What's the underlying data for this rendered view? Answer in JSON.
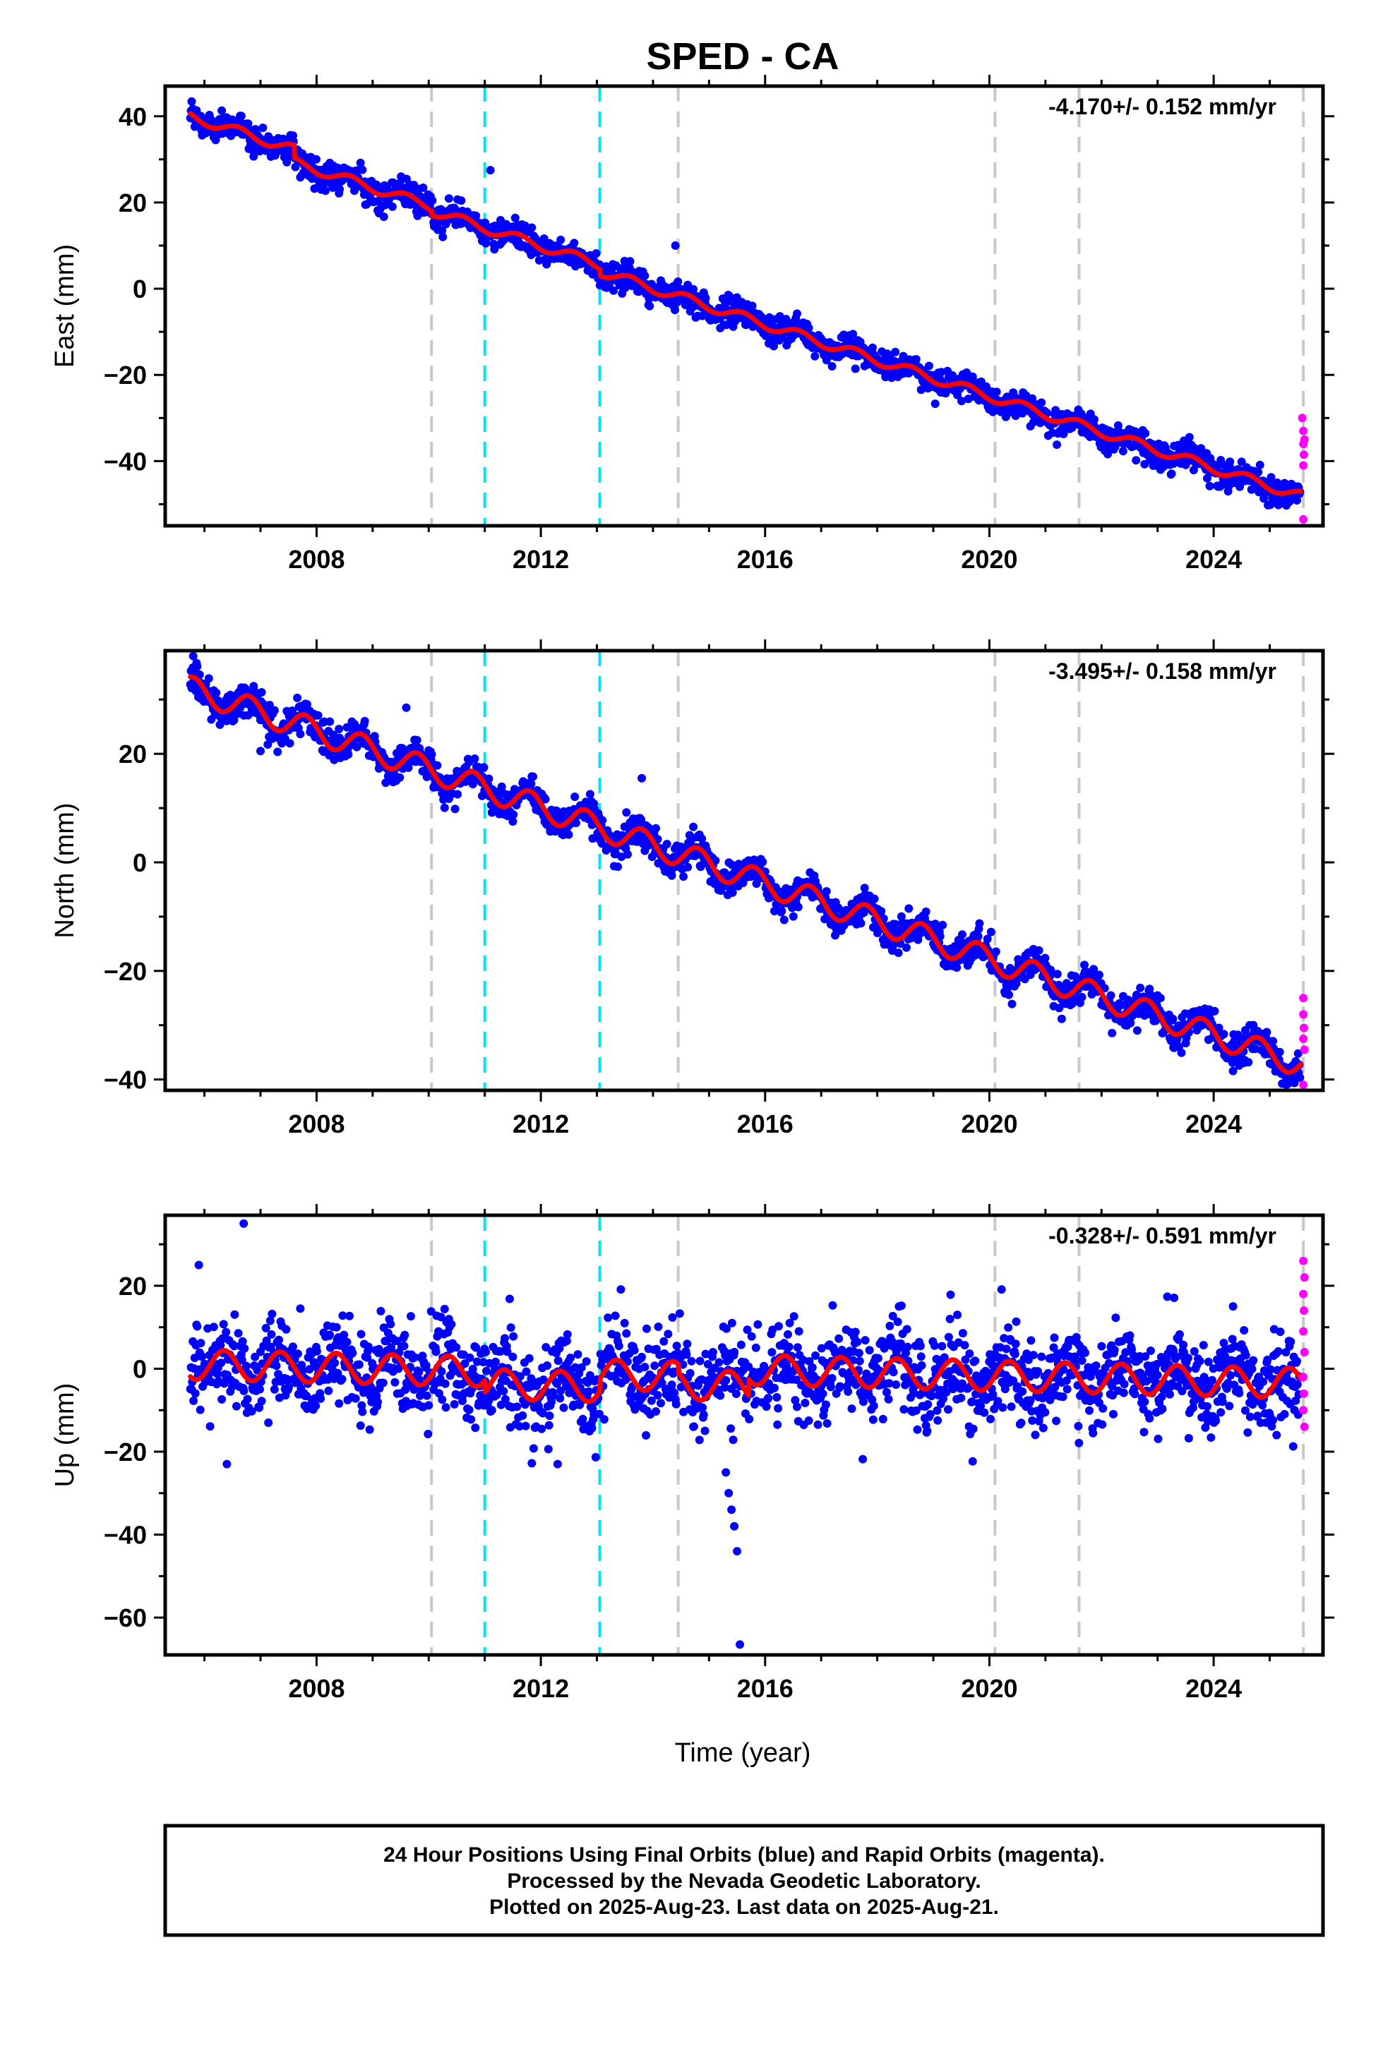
{
  "chart_data": [
    {
      "type": "scatter",
      "panel": "east",
      "title": "SPED - CA",
      "ylabel": "East (mm)",
      "xlabel": "",
      "rate_label": "-4.170+/- 0.152 mm/yr",
      "xlim": [
        2005.3,
        2025.95
      ],
      "ylim": [
        -55,
        47
      ],
      "xticks": [
        2008,
        2012,
        2016,
        2020,
        2024
      ],
      "yticks": [
        -40,
        -20,
        0,
        20,
        40
      ],
      "grid": false,
      "model": {
        "start_year": 2005.75,
        "start_value": 40.0,
        "rate": -4.17,
        "annual_amp": 1.1,
        "annual_phase": 0.35,
        "offsets": [
          {
            "year": 2007.6,
            "value": -3.0
          },
          {
            "year": 2010.05,
            "value": -1.0
          },
          {
            "year": 2013.05,
            "value": -1.5
          }
        ]
      },
      "final_scatter_sd": 1.6,
      "final_outliers": [
        {
          "x": 2006.2,
          "y": 34.5
        },
        {
          "x": 2010.0,
          "y": 18.0
        },
        {
          "x": 2011.1,
          "y": 27.5
        },
        {
          "x": 2014.4,
          "y": 10.0
        }
      ],
      "rapid_points": [
        {
          "x": 2025.58,
          "y": -30.0
        },
        {
          "x": 2025.6,
          "y": -33.0
        },
        {
          "x": 2025.6,
          "y": -36.0
        },
        {
          "x": 2025.61,
          "y": -38.5
        },
        {
          "x": 2025.6,
          "y": -41.0
        },
        {
          "x": 2025.62,
          "y": -35.0
        },
        {
          "x": 2025.6,
          "y": -53.5
        }
      ]
    },
    {
      "type": "scatter",
      "panel": "north",
      "title": "",
      "ylabel": "North (mm)",
      "xlabel": "",
      "rate_label": "-3.495+/- 0.158 mm/yr",
      "xlim": [
        2005.3,
        2025.95
      ],
      "ylim": [
        -42,
        39
      ],
      "xticks": [
        2008,
        2012,
        2016,
        2020,
        2024
      ],
      "yticks": [
        -40,
        -20,
        0,
        20
      ],
      "grid": false,
      "model": {
        "start_year": 2005.75,
        "start_value": 32.0,
        "rate": -3.495,
        "annual_amp": 2.3,
        "annual_phase": 0.55,
        "offsets": []
      },
      "final_scatter_sd": 1.5,
      "final_outliers": [
        {
          "x": 2005.8,
          "y": 38.0
        },
        {
          "x": 2007.0,
          "y": 20.5
        },
        {
          "x": 2009.6,
          "y": 28.5
        },
        {
          "x": 2013.8,
          "y": 15.5
        },
        {
          "x": 2025.3,
          "y": -41.0
        }
      ],
      "rapid_points": [
        {
          "x": 2025.6,
          "y": -25.0
        },
        {
          "x": 2025.6,
          "y": -28.0
        },
        {
          "x": 2025.61,
          "y": -30.5
        },
        {
          "x": 2025.6,
          "y": -32.5
        },
        {
          "x": 2025.62,
          "y": -34.5
        },
        {
          "x": 2025.6,
          "y": -41.0
        }
      ]
    },
    {
      "type": "scatter",
      "panel": "up",
      "title": "",
      "ylabel": "Up (mm)",
      "xlabel": "Time (year)",
      "rate_label": "-0.328+/- 0.591 mm/yr",
      "xlim": [
        2005.3,
        2025.95
      ],
      "ylim": [
        -69,
        37
      ],
      "xticks": [
        2008,
        2012,
        2016,
        2020,
        2024
      ],
      "yticks": [
        -60,
        -40,
        -20,
        0,
        20
      ],
      "grid": false,
      "model": {
        "start_year": 2005.75,
        "start_value": 1.0,
        "rate": -0.328,
        "annual_amp": 3.6,
        "annual_phase": 0.1,
        "offsets": [
          {
            "year": 2011.0,
            "value": -3.0
          },
          {
            "year": 2013.05,
            "value": 3.0
          },
          {
            "year": 2014.45,
            "value": -2.0
          },
          {
            "year": 2015.7,
            "value": 4.0
          }
        ]
      },
      "final_scatter_sd": 5.5,
      "final_outliers": [
        {
          "x": 2006.7,
          "y": 35.0
        },
        {
          "x": 2005.9,
          "y": 25.0
        },
        {
          "x": 2006.4,
          "y": -23.0
        },
        {
          "x": 2015.35,
          "y": -30.0
        },
        {
          "x": 2015.4,
          "y": -34.0
        },
        {
          "x": 2015.45,
          "y": -38.0
        },
        {
          "x": 2015.5,
          "y": -44.0
        },
        {
          "x": 2015.55,
          "y": -66.5
        },
        {
          "x": 2015.3,
          "y": -25.0
        },
        {
          "x": 2012.3,
          "y": -23.0
        }
      ],
      "rapid_points": [
        {
          "x": 2025.6,
          "y": 26.0
        },
        {
          "x": 2025.62,
          "y": 22.0
        },
        {
          "x": 2025.6,
          "y": 18.0
        },
        {
          "x": 2025.61,
          "y": 14.0
        },
        {
          "x": 2025.6,
          "y": 9.0
        },
        {
          "x": 2025.62,
          "y": 4.0
        },
        {
          "x": 2025.6,
          "y": -2.0
        },
        {
          "x": 2025.61,
          "y": -6.0
        },
        {
          "x": 2025.6,
          "y": -10.0
        },
        {
          "x": 2025.62,
          "y": -14.0
        }
      ]
    }
  ],
  "data_range": {
    "first_year": 2005.75,
    "last_final_year": 2025.55,
    "last_rapid_year": 2025.64
  },
  "event_lines": {
    "gray": [
      2010.05,
      2014.45,
      2020.1,
      2021.6,
      2025.6
    ],
    "cyan": [
      2011.0,
      2013.05
    ]
  },
  "colors": {
    "final": "#0000ff",
    "rapid": "#ff00ff",
    "model": "#ff0000",
    "gray_line": "#c8c8c8",
    "cyan_line": "#00e5f0",
    "frame": "#000000"
  },
  "footer": {
    "line1": "24 Hour Positions Using Final Orbits (blue) and Rapid Orbits (magenta).",
    "line2": "Processed by the Nevada Geodetic Laboratory.",
    "line3": "Plotted on 2025-Aug-23. Last data on 2025-Aug-21."
  }
}
